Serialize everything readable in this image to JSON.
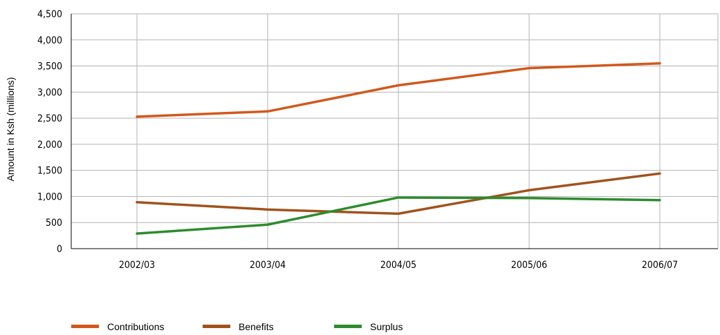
{
  "chart_data": {
    "type": "line",
    "categories": [
      "2002/03",
      "2003/04",
      "2004/05",
      "2005/06",
      "2006/07"
    ],
    "ylabel": "Amount in Ksh (millions)",
    "xlabel": "",
    "ylim": [
      0,
      4500
    ],
    "yticks": [
      0,
      500,
      1000,
      1500,
      2000,
      2500,
      3000,
      3500,
      4000,
      4500
    ],
    "ytick_labels": [
      "0",
      "500",
      "1,000",
      "1,500",
      "2,000",
      "2,500",
      "3,000",
      "3,500",
      "4,000",
      "4,500"
    ],
    "grid": true,
    "legend_position": "bottom-left",
    "series": [
      {
        "name": "Contributions",
        "color": "#d2581c",
        "values": [
          2530,
          2630,
          3130,
          3460,
          3550
        ]
      },
      {
        "name": "Benefits",
        "color": "#a0521d",
        "values": [
          890,
          750,
          670,
          1120,
          1440
        ]
      },
      {
        "name": "Surplus",
        "color": "#2e8b2e",
        "values": [
          290,
          460,
          980,
          970,
          930
        ]
      }
    ]
  }
}
